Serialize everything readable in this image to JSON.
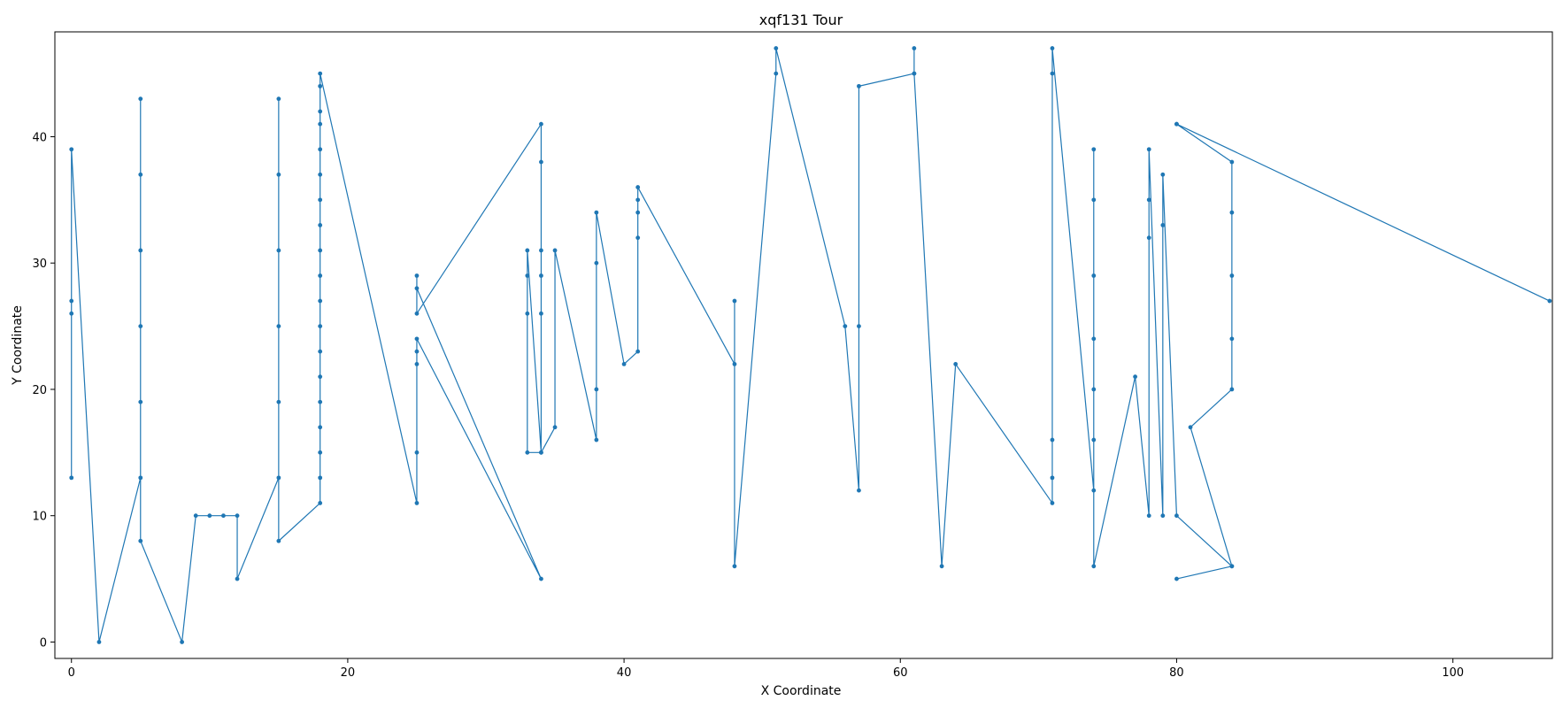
{
  "chart_data": {
    "type": "line",
    "title": "xqf131 Tour",
    "xlabel": "X Coordinate",
    "ylabel": "Y Coordinate",
    "xlim": [
      -1.2,
      107.2
    ],
    "ylim": [
      -1.3,
      48.3
    ],
    "xticks": [
      0,
      20,
      40,
      60,
      80,
      100
    ],
    "yticks": [
      0,
      10,
      20,
      30,
      40
    ],
    "grid": false,
    "legend": "none",
    "line_color": "#1f77b4",
    "series": [
      {
        "points": [
          [
            0,
            13
          ],
          [
            0,
            26
          ],
          [
            0,
            27
          ],
          [
            0,
            39
          ],
          [
            2,
            0
          ],
          [
            5,
            13
          ],
          [
            5,
            19
          ],
          [
            5,
            25
          ],
          [
            5,
            31
          ],
          [
            5,
            37
          ],
          [
            5,
            43
          ],
          [
            5,
            8
          ],
          [
            8,
            0
          ],
          [
            9,
            10
          ],
          [
            10,
            10
          ],
          [
            11,
            10
          ],
          [
            12,
            10
          ],
          [
            12,
            5
          ],
          [
            15,
            13
          ],
          [
            15,
            19
          ],
          [
            15,
            25
          ],
          [
            15,
            31
          ],
          [
            15,
            37
          ],
          [
            15,
            43
          ],
          [
            15,
            8
          ],
          [
            18,
            11
          ],
          [
            18,
            13
          ],
          [
            18,
            15
          ],
          [
            18,
            17
          ],
          [
            18,
            19
          ],
          [
            18,
            21
          ],
          [
            18,
            23
          ],
          [
            18,
            25
          ],
          [
            18,
            27
          ],
          [
            18,
            29
          ],
          [
            18,
            31
          ],
          [
            18,
            33
          ],
          [
            18,
            35
          ],
          [
            18,
            37
          ],
          [
            18,
            39
          ],
          [
            18,
            41
          ],
          [
            18,
            42
          ],
          [
            18,
            44
          ],
          [
            18,
            45
          ],
          [
            25,
            11
          ],
          [
            25,
            15
          ],
          [
            25,
            22
          ],
          [
            25,
            23
          ],
          [
            25,
            24
          ],
          [
            34,
            5
          ],
          [
            25,
            28
          ],
          [
            25,
            29
          ],
          [
            25,
            26
          ],
          [
            34,
            41
          ],
          [
            34,
            38
          ],
          [
            34,
            31
          ],
          [
            34,
            29
          ],
          [
            34,
            26
          ],
          [
            34,
            15
          ],
          [
            33,
            15
          ],
          [
            33,
            26
          ],
          [
            33,
            29
          ],
          [
            33,
            31
          ],
          [
            34,
            15
          ],
          [
            35,
            17
          ],
          [
            35,
            31
          ],
          [
            38,
            16
          ],
          [
            38,
            20
          ],
          [
            38,
            30
          ],
          [
            38,
            34
          ],
          [
            40,
            22
          ],
          [
            41,
            23
          ],
          [
            41,
            32
          ],
          [
            41,
            34
          ],
          [
            41,
            35
          ],
          [
            41,
            36
          ],
          [
            48,
            22
          ],
          [
            48,
            27
          ],
          [
            48,
            6
          ],
          [
            51,
            45
          ],
          [
            51,
            47
          ],
          [
            56,
            25
          ],
          [
            57,
            12
          ],
          [
            57,
            25
          ],
          [
            57,
            44
          ],
          [
            61,
            45
          ],
          [
            61,
            47
          ],
          [
            61,
            45
          ],
          [
            63,
            6
          ],
          [
            64,
            22
          ],
          [
            71,
            11
          ],
          [
            71,
            13
          ],
          [
            71,
            16
          ],
          [
            71,
            45
          ],
          [
            71,
            47
          ],
          [
            74,
            12
          ],
          [
            74,
            16
          ],
          [
            74,
            20
          ],
          [
            74,
            24
          ],
          [
            74,
            29
          ],
          [
            74,
            35
          ],
          [
            74,
            39
          ],
          [
            74,
            6
          ],
          [
            77,
            21
          ],
          [
            78,
            10
          ],
          [
            78,
            32
          ],
          [
            78,
            35
          ],
          [
            78,
            39
          ],
          [
            79,
            10
          ],
          [
            79,
            33
          ],
          [
            79,
            37
          ],
          [
            80,
            10
          ],
          [
            84,
            6
          ],
          [
            80,
            5
          ],
          [
            84,
            6
          ],
          [
            81,
            17
          ],
          [
            84,
            20
          ],
          [
            84,
            24
          ],
          [
            84,
            29
          ],
          [
            84,
            34
          ],
          [
            84,
            38
          ],
          [
            80,
            41
          ],
          [
            107,
            27
          ],
          [
            80,
            41
          ]
        ]
      }
    ]
  }
}
